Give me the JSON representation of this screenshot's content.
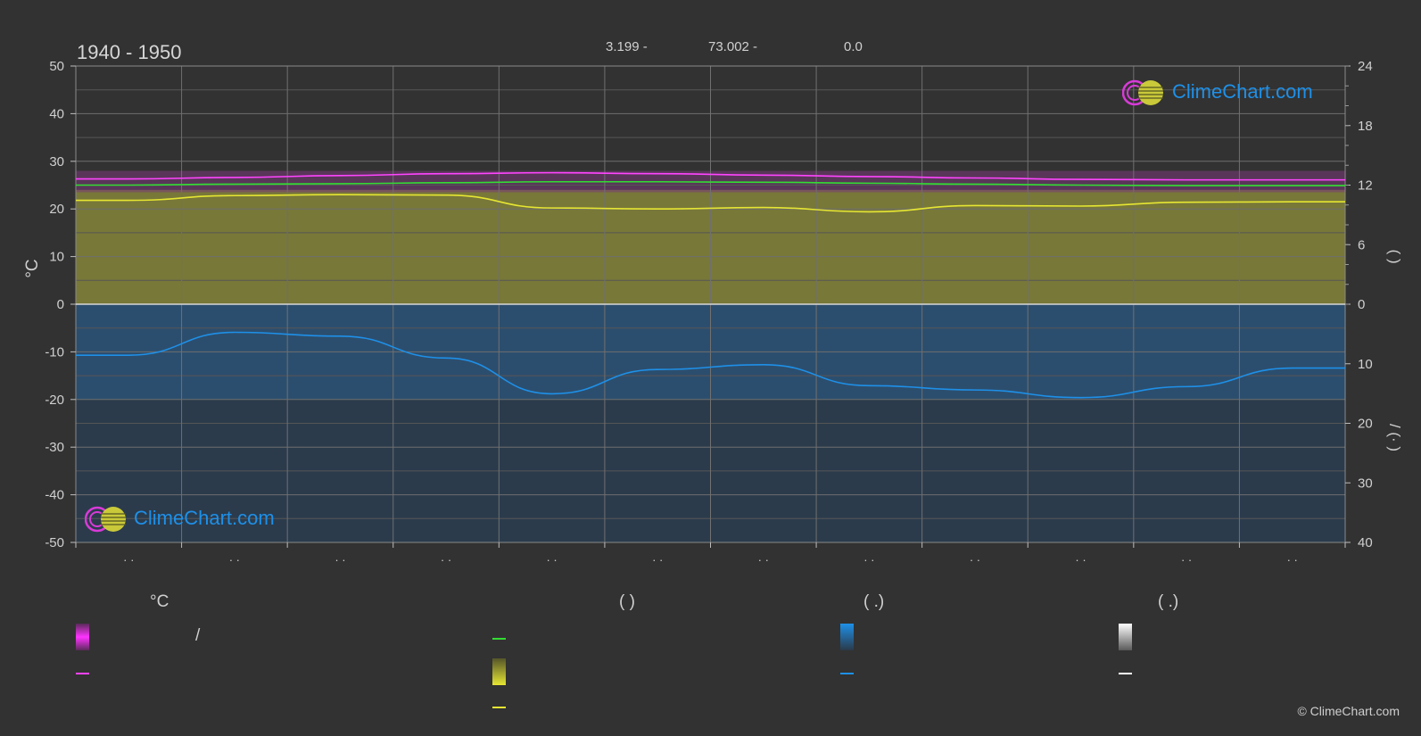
{
  "header": {
    "title": "1940 - 1950",
    "coords": [
      "3.199 -",
      "73.002 -",
      "0.0"
    ]
  },
  "chart_data": {
    "type": "line",
    "x": [
      0,
      1,
      2,
      3,
      4,
      5,
      6,
      7,
      8,
      9,
      10,
      11
    ],
    "x_tick_labels": [
      "· ·",
      "· ·",
      "· ·",
      "· ·",
      "· ·",
      "· ·",
      "· ·",
      "· ·",
      "· ·",
      "· ·",
      "· ·",
      "· ·"
    ],
    "ylabel_left": "°C",
    "ylim_left": [
      -50,
      50
    ],
    "yticks_left": [
      50,
      40,
      30,
      20,
      10,
      0,
      -10,
      -20,
      -30,
      -40,
      -50
    ],
    "yticks_right_upper": [
      24,
      18,
      12,
      6,
      0
    ],
    "yticks_right_lower": [
      10,
      20,
      30,
      40
    ],
    "ylabel_right_upper": "(   )",
    "ylabel_right_lower": "/   (·   )",
    "grid": true,
    "series": [
      {
        "color": "#ff44ff",
        "values": [
          26.3,
          26.6,
          27.0,
          27.4,
          27.6,
          27.4,
          27.1,
          26.8,
          26.5,
          26.2,
          26.1,
          26.1
        ]
      },
      {
        "color": "#33dd33",
        "values": [
          25.0,
          25.2,
          25.3,
          25.5,
          25.7,
          25.7,
          25.6,
          25.4,
          25.2,
          25.0,
          24.9,
          24.9
        ]
      },
      {
        "color": "#e6e633",
        "values": [
          21.8,
          22.8,
          23.0,
          22.9,
          20.2,
          20.0,
          20.3,
          19.4,
          20.7,
          20.6,
          21.4,
          21.5
        ]
      },
      {
        "color": "#1e90e8",
        "values": [
          -10.7,
          -5.9,
          -6.7,
          -11.3,
          -18.8,
          -13.7,
          -12.7,
          -17.1,
          -18.0,
          -19.6,
          -17.3,
          -13.4
        ]
      }
    ]
  },
  "legend": {
    "headings": [
      "°C",
      "(          )",
      "(   .)",
      "(   .)"
    ],
    "slash": "/"
  },
  "brand": {
    "name": "ClimeChart.com",
    "copyright": "© ClimeChart.com"
  },
  "colors": {
    "background": "#323232",
    "magenta": "#ff44ff",
    "green": "#33dd33",
    "yellow": "#e6e633",
    "blue": "#1e90e8",
    "white": "#ffffff"
  }
}
